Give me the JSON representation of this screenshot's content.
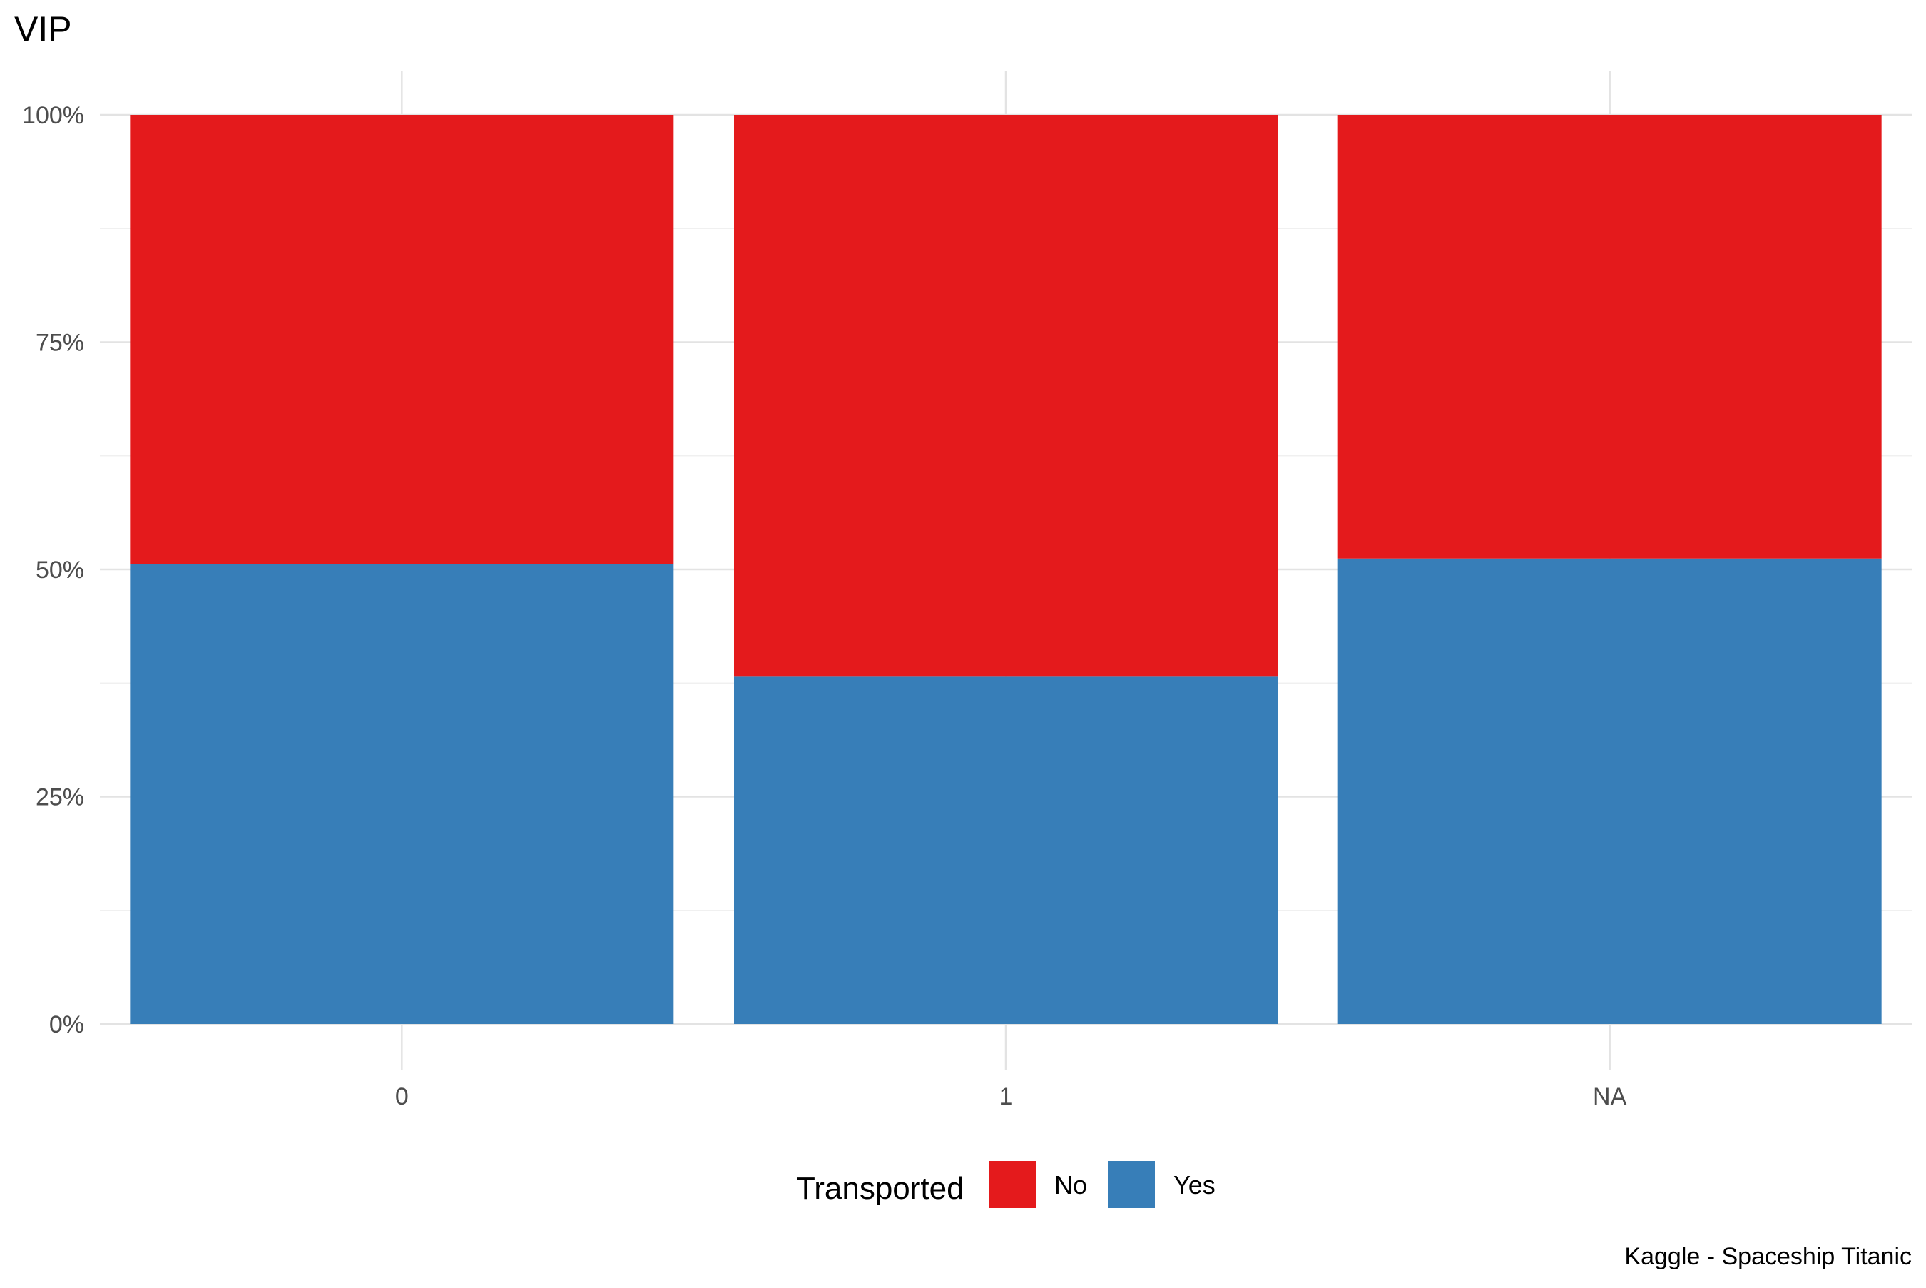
{
  "chart_data": {
    "type": "bar",
    "stacked": true,
    "percent": true,
    "title": "VIP",
    "caption": "Kaggle - Spaceship Titanic",
    "xlabel": "",
    "ylabel": "",
    "categories": [
      "0",
      "1",
      "NA"
    ],
    "series": [
      {
        "name": "No",
        "values": [
          0.494,
          0.618,
          0.488
        ],
        "color": "#E41A1C"
      },
      {
        "name": "Yes",
        "values": [
          0.506,
          0.382,
          0.512
        ],
        "color": "#377EB8"
      }
    ],
    "ylim": [
      0,
      1
    ],
    "yticks": [
      0,
      0.25,
      0.5,
      0.75,
      1
    ],
    "ytick_labels": [
      "0%",
      "25%",
      "50%",
      "75%",
      "100%"
    ],
    "legend": {
      "title": "Transported",
      "position": "bottom"
    },
    "grid": true
  }
}
